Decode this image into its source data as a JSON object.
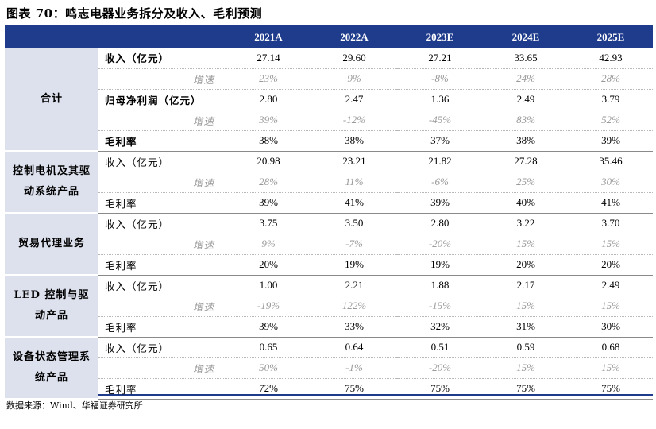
{
  "title": "图表 70：鸣志电器业务拆分及收入、毛利预测",
  "headers": [
    "",
    "",
    "2021A",
    "2022A",
    "2023E",
    "2024E",
    "2025E"
  ],
  "groups": [
    {
      "name": "合计",
      "rows": [
        {
          "label": "收入（亿元）",
          "values": [
            "27.14",
            "29.60",
            "27.21",
            "33.65",
            "42.93"
          ],
          "style": "bold"
        },
        {
          "label": "增速",
          "values": [
            "23%",
            "9%",
            "-8%",
            "24%",
            "28%"
          ],
          "style": "sub"
        },
        {
          "label": "归母净利润（亿元）",
          "values": [
            "2.80",
            "2.47",
            "1.36",
            "2.49",
            "3.79"
          ],
          "style": "bold"
        },
        {
          "label": "增速",
          "values": [
            "39%",
            "-12%",
            "-45%",
            "83%",
            "52%"
          ],
          "style": "sub"
        },
        {
          "label": "毛利率",
          "values": [
            "38%",
            "38%",
            "37%",
            "38%",
            "39%"
          ],
          "style": "bold"
        }
      ]
    },
    {
      "name": "控制电机及其驱动系统产品",
      "rows": [
        {
          "label": "收入（亿元）",
          "values": [
            "20.98",
            "23.21",
            "21.82",
            "27.28",
            "35.46"
          ],
          "style": "normal"
        },
        {
          "label": "增速",
          "values": [
            "28%",
            "11%",
            "-6%",
            "25%",
            "30%"
          ],
          "style": "sub"
        },
        {
          "label": "毛利率",
          "values": [
            "39%",
            "41%",
            "39%",
            "40%",
            "41%"
          ],
          "style": "normal"
        }
      ]
    },
    {
      "name": "贸易代理业务",
      "rows": [
        {
          "label": "收入（亿元）",
          "values": [
            "3.75",
            "3.50",
            "2.80",
            "3.22",
            "3.70"
          ],
          "style": "normal"
        },
        {
          "label": "增速",
          "values": [
            "9%",
            "-7%",
            "-20%",
            "15%",
            "15%"
          ],
          "style": "sub"
        },
        {
          "label": "毛利率",
          "values": [
            "20%",
            "19%",
            "19%",
            "20%",
            "20%"
          ],
          "style": "normal"
        }
      ]
    },
    {
      "name": "LED 控制与驱动产品",
      "rows": [
        {
          "label": "收入（亿元）",
          "values": [
            "1.00",
            "2.21",
            "1.88",
            "2.17",
            "2.49"
          ],
          "style": "normal"
        },
        {
          "label": "增速",
          "values": [
            "-19%",
            "122%",
            "-15%",
            "15%",
            "15%"
          ],
          "style": "sub"
        },
        {
          "label": "毛利率",
          "values": [
            "39%",
            "33%",
            "32%",
            "31%",
            "30%"
          ],
          "style": "normal"
        }
      ]
    },
    {
      "name": "设备状态管理系统产品",
      "rows": [
        {
          "label": "收入（亿元）",
          "values": [
            "0.65",
            "0.64",
            "0.51",
            "0.59",
            "0.68"
          ],
          "style": "normal"
        },
        {
          "label": "增速",
          "values": [
            "50%",
            "-1%",
            "-20%",
            "15%",
            "15%"
          ],
          "style": "sub"
        },
        {
          "label": "毛利率",
          "values": [
            "72%",
            "75%",
            "75%",
            "75%",
            "75%"
          ],
          "style": "normal"
        }
      ]
    }
  ],
  "source": "数据来源：Wind、华福证券研究所"
}
